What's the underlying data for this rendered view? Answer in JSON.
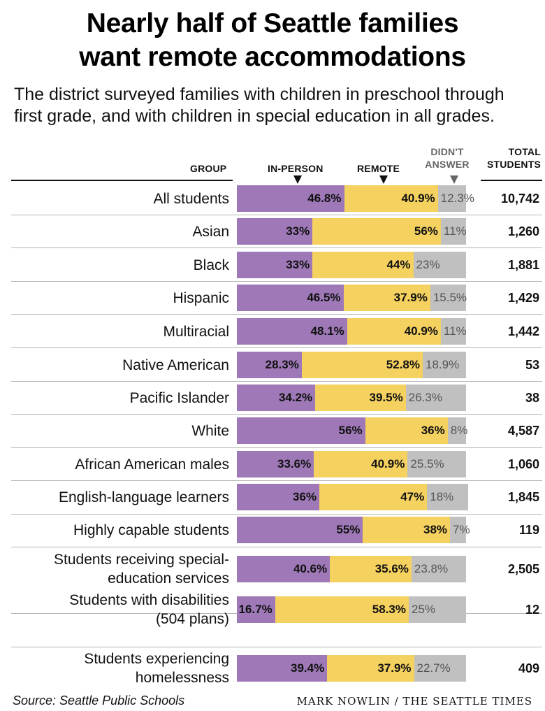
{
  "title_line1": "Nearly half of Seattle families",
  "title_line2": "want remote accommodations",
  "subtitle": "The district surveyed families with children in preschool through first grade, and with children in special education in all grades.",
  "headers": {
    "group": "GROUP",
    "in_person": "IN-PERSON",
    "remote": "REMOTE",
    "no_answer_line1": "DIDN'T",
    "no_answer_line2": "ANSWER",
    "total_line1": "TOTAL",
    "total_line2": "STUDENTS"
  },
  "source": "Source: Seattle Public Schools",
  "credit": "MARK NOWLIN / THE SEATTLE TIMES",
  "chart_data": {
    "type": "bar",
    "stacked": true,
    "orientation": "horizontal",
    "colors": {
      "in_person": "#9e78b7",
      "remote": "#f5d160",
      "no_answer": "#c0c0c0"
    },
    "rows": [
      {
        "group": [
          "All students"
        ],
        "in_person": 46.8,
        "remote": 40.9,
        "no_answer": 12.3,
        "labels": [
          "46.8%",
          "40.9%",
          "12.3%"
        ],
        "total": "10,742"
      },
      {
        "group": [
          "Asian"
        ],
        "in_person": 33,
        "remote": 56,
        "no_answer": 11,
        "labels": [
          "33%",
          "56%",
          "11%"
        ],
        "total": "1,260"
      },
      {
        "group": [
          "Black"
        ],
        "in_person": 33,
        "remote": 44,
        "no_answer": 23,
        "labels": [
          "33%",
          "44%",
          "23%"
        ],
        "total": "1,881"
      },
      {
        "group": [
          "Hispanic"
        ],
        "in_person": 46.5,
        "remote": 37.9,
        "no_answer": 15.5,
        "labels": [
          "46.5%",
          "37.9%",
          "15.5%"
        ],
        "total": "1,429"
      },
      {
        "group": [
          "Multiracial"
        ],
        "in_person": 48.1,
        "remote": 40.9,
        "no_answer": 11,
        "labels": [
          "48.1%",
          "40.9%",
          "11%"
        ],
        "total": "1,442"
      },
      {
        "group": [
          "Native American"
        ],
        "in_person": 28.3,
        "remote": 52.8,
        "no_answer": 18.9,
        "labels": [
          "28.3%",
          "52.8%",
          "18.9%"
        ],
        "total": "53"
      },
      {
        "group": [
          "Pacific Islander"
        ],
        "in_person": 34.2,
        "remote": 39.5,
        "no_answer": 26.3,
        "labels": [
          "34.2%",
          "39.5%",
          "26.3%"
        ],
        "total": "38"
      },
      {
        "group": [
          "White"
        ],
        "in_person": 56,
        "remote": 36,
        "no_answer": 8,
        "labels": [
          "56%",
          "36%",
          "8%"
        ],
        "total": "4,587"
      },
      {
        "group": [
          "African American males"
        ],
        "in_person": 33.6,
        "remote": 40.9,
        "no_answer": 25.5,
        "labels": [
          "33.6%",
          "40.9%",
          "25.5%"
        ],
        "total": "1,060"
      },
      {
        "group": [
          "English-language learners"
        ],
        "in_person": 36,
        "remote": 47,
        "no_answer": 18,
        "labels": [
          "36%",
          "47%",
          "18%"
        ],
        "total": "1,845"
      },
      {
        "group": [
          "Highly capable students"
        ],
        "in_person": 55,
        "remote": 38,
        "no_answer": 7,
        "labels": [
          "55%",
          "38%",
          "7%"
        ],
        "total": "119"
      },
      {
        "group": [
          "Students receiving special-",
          "education services"
        ],
        "in_person": 40.6,
        "remote": 35.6,
        "no_answer": 23.8,
        "labels": [
          "40.6%",
          "35.6%",
          "23.8%"
        ],
        "total": "2,505"
      },
      {
        "group": [
          "Students with disabilities",
          "(504 plans)"
        ],
        "in_person": 16.7,
        "remote": 58.3,
        "no_answer": 25,
        "labels": [
          "16.7%",
          "58.3%",
          "25%"
        ],
        "total": "12"
      },
      {
        "group": [
          "Students experiencing",
          "homelessness"
        ],
        "in_person": 39.4,
        "remote": 37.9,
        "no_answer": 22.7,
        "labels": [
          "39.4%",
          "37.9%",
          "22.7%"
        ],
        "total": "409"
      }
    ]
  }
}
